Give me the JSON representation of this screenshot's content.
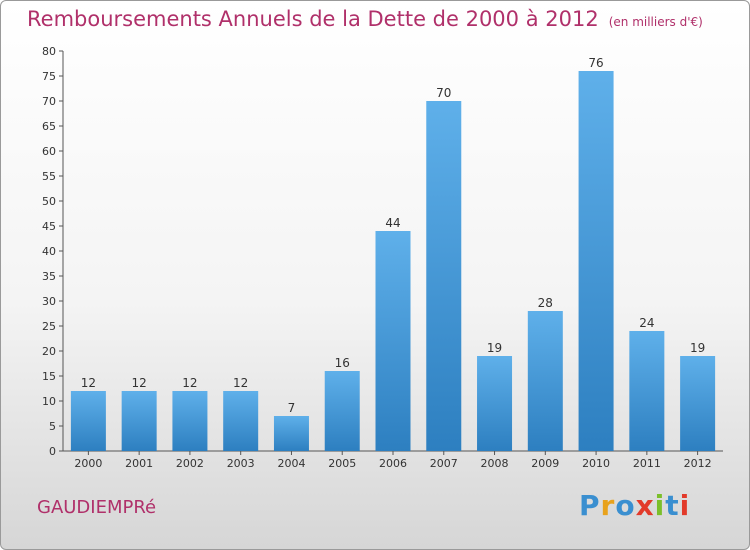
{
  "header": {
    "title": "Remboursements Annuels de la Dette de 2000 à 2012",
    "unit": "(en milliers d'€)"
  },
  "footer": {
    "commune": "GAUDIEMPRé",
    "logo": "Proxiti"
  },
  "colors": {
    "title": "#b0306a",
    "bar_top": "#5fb0ea",
    "bar_bottom": "#2d7fc0",
    "logo_letters": [
      "#3a8fd0",
      "#e8a21c",
      "#3a8fd0",
      "#e23a2a",
      "#7bbf2a",
      "#3a8fd0",
      "#e23a2a"
    ]
  },
  "chart_data": {
    "type": "bar",
    "categories": [
      "2000",
      "2001",
      "2002",
      "2003",
      "2004",
      "2005",
      "2006",
      "2007",
      "2008",
      "2009",
      "2010",
      "2011",
      "2012"
    ],
    "values": [
      12,
      12,
      12,
      12,
      7,
      16,
      44,
      70,
      19,
      28,
      76,
      24,
      19
    ],
    "title": "Remboursements Annuels de la Dette de 2000 à 2012",
    "ylabel": "",
    "xlabel": "",
    "ylim": [
      0,
      80
    ],
    "yticks": [
      0,
      5,
      10,
      15,
      20,
      25,
      30,
      35,
      40,
      45,
      50,
      55,
      60,
      65,
      70,
      75,
      80
    ],
    "grid": false,
    "data_labels": true
  }
}
